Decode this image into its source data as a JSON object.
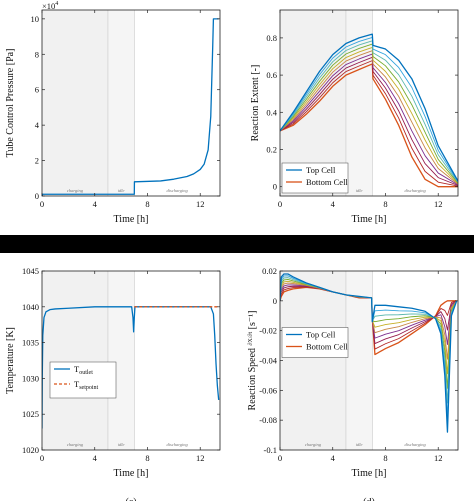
{
  "panels": [
    {
      "id": "a",
      "chart_data": {
        "type": "line",
        "xlabel": "Time [h]",
        "ylabel": "Tube Control Pressure [Pa]",
        "y_multiplier": "×10",
        "y_exponent": "4",
        "xlim": [
          0,
          13.5
        ],
        "ylim": [
          0,
          10.5
        ],
        "xticks": [
          0,
          4,
          8,
          12
        ],
        "yticks": [
          0,
          2,
          4,
          6,
          8,
          10
        ],
        "grid": false,
        "phase_shading": {
          "charging": [
            0,
            5
          ],
          "idle": [
            5,
            7
          ],
          "discharging": [
            7,
            13.5
          ]
        },
        "phase_labels": [
          "charging",
          "idle",
          "discharging"
        ],
        "series": [
          {
            "color": "#0072BD",
            "x": [
              0,
              0.05,
              5,
              7,
              7.01,
              9,
              10,
              11,
              11.5,
              12,
              12.3,
              12.6,
              12.8,
              12.95,
              13,
              13.01,
              13.4
            ],
            "y": [
              0,
              0.1,
              0.1,
              0.1,
              0.8,
              0.85,
              0.95,
              1.1,
              1.25,
              1.5,
              1.8,
              2.6,
              4.5,
              8.5,
              10,
              10,
              10
            ]
          }
        ]
      }
    },
    {
      "id": "b",
      "chart_data": {
        "type": "line",
        "xlabel": "Time [h]",
        "ylabel": "Reaction Extent [-]",
        "xlim": [
          0,
          13.5
        ],
        "ylim": [
          -0.05,
          0.95
        ],
        "xticks": [
          0,
          4,
          8,
          12
        ],
        "yticks": [
          0,
          0.2,
          0.4,
          0.6,
          0.8
        ],
        "grid": false,
        "legend": {
          "placement": "lower-left",
          "entries": [
            {
              "label": "Top Cell",
              "color": "#0072BD"
            },
            {
              "label": "Bottom Cell",
              "color": "#D95319"
            }
          ]
        },
        "phase_shading": {
          "charging": [
            0,
            5
          ],
          "idle": [
            5,
            7
          ],
          "discharging": [
            7,
            13.5
          ]
        },
        "phase_labels": [
          "charging",
          "idle",
          "discharging"
        ],
        "num_cells": 10,
        "series": [
          {
            "color": "#0072BD",
            "x": [
              0,
              1,
              2,
              3,
              4,
              5,
              6,
              7,
              7.05,
              8,
              9,
              10,
              11,
              12,
              13.5
            ],
            "y": [
              0.3,
              0.4,
              0.51,
              0.62,
              0.71,
              0.77,
              0.8,
              0.82,
              0.76,
              0.74,
              0.68,
              0.58,
              0.42,
              0.22,
              0.03
            ]
          },
          {
            "color": "#D95319",
            "x": [
              0,
              1,
              2,
              3,
              4,
              5,
              6,
              7,
              7.05,
              8,
              9,
              10,
              11,
              12,
              13.5
            ],
            "y": [
              0.3,
              0.33,
              0.39,
              0.46,
              0.54,
              0.6,
              0.63,
              0.66,
              0.58,
              0.47,
              0.33,
              0.16,
              0.04,
              0.0,
              0.0
            ]
          }
        ]
      }
    },
    {
      "id": "c",
      "chart_data": {
        "type": "line",
        "xlabel": "Time [h]",
        "ylabel": "Temperature [K]",
        "xlim": [
          0,
          13.5
        ],
        "ylim": [
          1020,
          1045
        ],
        "xticks": [
          0,
          4,
          8,
          12
        ],
        "yticks": [
          1020,
          1025,
          1030,
          1035,
          1040,
          1045
        ],
        "grid": false,
        "legend": {
          "placement": "lower-left",
          "entries": [
            {
              "label": "T",
              "sub": "outlet",
              "color": "#0072BD",
              "style": "solid"
            },
            {
              "label": "T",
              "sub": "setpoint",
              "color": "#D95319",
              "style": "dashed"
            }
          ]
        },
        "phase_shading": {
          "charging": [
            0,
            5
          ],
          "idle": [
            5,
            7
          ],
          "discharging": [
            7,
            13.5
          ]
        },
        "phase_labels": [
          "charging",
          "idle",
          "discharging"
        ],
        "series": [
          {
            "color": "#0072BD",
            "style": "solid",
            "x": [
              0,
              0.02,
              0.06,
              0.15,
              0.3,
              0.6,
              1,
              2,
              4,
              5,
              6.8,
              6.9,
              6.95,
              7.0,
              7.05,
              7.1,
              8,
              9,
              10,
              11,
              12,
              12.8,
              13,
              13.1,
              13.2,
              13.3,
              13.4
            ],
            "y": [
              1023,
              1030,
              1036,
              1038.5,
              1039.3,
              1039.6,
              1039.7,
              1039.8,
              1040,
              1040,
              1040,
              1038.5,
              1036.5,
              1038.5,
              1040,
              1040,
              1040,
              1040,
              1040,
              1040,
              1040,
              1040,
              1039,
              1036,
              1032,
              1029,
              1027
            ]
          },
          {
            "color": "#D95319",
            "style": "dashed",
            "x": [
              7.0,
              13.4
            ],
            "y": [
              1040,
              1040
            ]
          }
        ]
      }
    },
    {
      "id": "d",
      "chart_data": {
        "type": "line",
        "xlabel": "Time [h]",
        "ylabel": "Reaction Speed",
        "ylabel_fraction_num": "∂X",
        "ylabel_fraction_den": "∂t",
        "ylabel_unit": "[s⁻¹]",
        "xlim": [
          0,
          13.5
        ],
        "ylim": [
          -0.1,
          0.02
        ],
        "xticks": [
          0,
          4,
          8,
          12
        ],
        "yticks": [
          -0.1,
          -0.08,
          -0.06,
          -0.04,
          -0.02,
          0,
          0.02
        ],
        "grid": false,
        "legend": {
          "placement": "center-left",
          "entries": [
            {
              "label": "Top Cell",
              "color": "#0072BD"
            },
            {
              "label": "Bottom Cell",
              "color": "#D95319"
            }
          ]
        },
        "phase_shading": {
          "charging": [
            0,
            5
          ],
          "idle": [
            5,
            7
          ],
          "discharging": [
            7,
            13.5
          ]
        },
        "phase_labels": [
          "charging",
          "idle",
          "discharging"
        ],
        "num_cells": 10,
        "series": [
          {
            "color": "#0072BD",
            "x": [
              0,
              0.1,
              0.3,
              0.6,
              1,
              2,
              3,
              4,
              5,
              6,
              6.95,
              7,
              7.2,
              8,
              9,
              10,
              11,
              11.8,
              12.2,
              12.5,
              12.7,
              13,
              13.4
            ],
            "y": [
              0,
              0.016,
              0.018,
              0.018,
              0.016,
              0.012,
              0.009,
              0.006,
              0.004,
              0.003,
              0.002,
              -0.014,
              -0.003,
              -0.003,
              -0.004,
              -0.005,
              -0.007,
              -0.012,
              -0.022,
              -0.05,
              -0.088,
              -0.01,
              0.0
            ]
          },
          {
            "color": "#D95319",
            "x": [
              0,
              0.1,
              0.3,
              0.6,
              1,
              2,
              3,
              4,
              5,
              6,
              6.95,
              7,
              7.2,
              8,
              9,
              10,
              11,
              11.8,
              12.2,
              12.5,
              12.7,
              13,
              13.4
            ],
            "y": [
              0,
              0.003,
              0.006,
              0.007,
              0.008,
              0.009,
              0.008,
              0.006,
              0.004,
              0.002,
              0.002,
              -0.012,
              -0.036,
              -0.032,
              -0.028,
              -0.022,
              -0.016,
              -0.01,
              -0.003,
              -0.001,
              0,
              0,
              0
            ]
          }
        ]
      }
    }
  ],
  "captions": [
    "(c)",
    "(d)"
  ]
}
